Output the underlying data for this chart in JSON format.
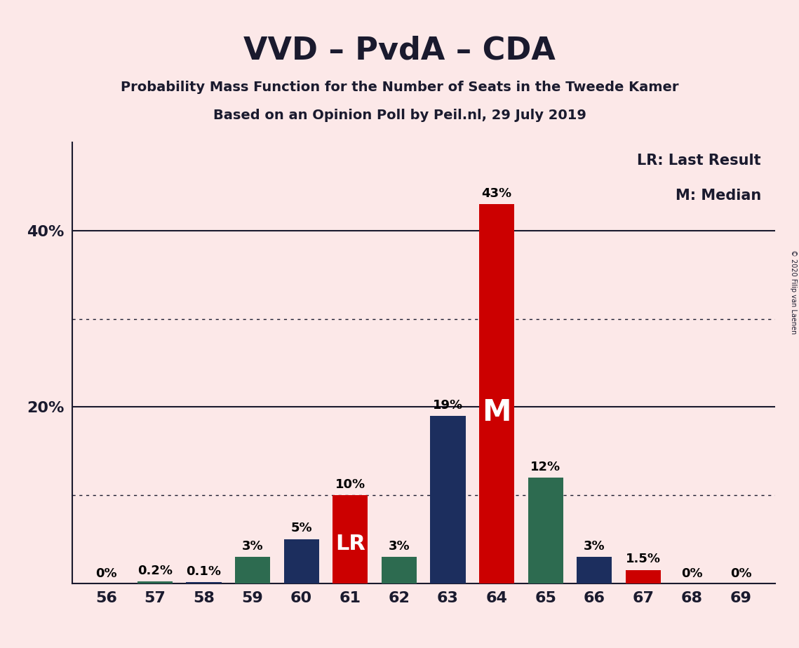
{
  "title": "VVD – PvdA – CDA",
  "subtitle1": "Probability Mass Function for the Number of Seats in the Tweede Kamer",
  "subtitle2": "Based on an Opinion Poll by Peil.nl, 29 July 2019",
  "copyright": "© 2020 Filip van Laenen",
  "legend_lr": "LR: Last Result",
  "legend_m": "M: Median",
  "seats": [
    56,
    57,
    58,
    59,
    60,
    61,
    62,
    63,
    64,
    65,
    66,
    67,
    68,
    69
  ],
  "values": [
    0,
    0.2,
    0.1,
    3,
    5,
    10,
    3,
    19,
    43,
    12,
    3,
    1.5,
    0,
    0
  ],
  "bar_colors": [
    "none",
    "#2d6b50",
    "#1c2e5e",
    "#2d6b50",
    "#1c2e5e",
    "#cc0000",
    "#2d6b50",
    "#1c2e5e",
    "#cc0000",
    "#2d6b50",
    "#1c2e5e",
    "#cc0000",
    "none",
    "none"
  ],
  "labels": [
    "0%",
    "0.2%",
    "0.1%",
    "3%",
    "5%",
    "10%",
    "3%",
    "19%",
    "43%",
    "12%",
    "3%",
    "1.5%",
    "0%",
    "0%"
  ],
  "lr_seat": 61,
  "median_seat": 64,
  "ymax": 50,
  "background_color": "#fce8e8",
  "dotted_lines": [
    10,
    30
  ],
  "solid_lines": [
    20,
    40
  ],
  "bar_width": 0.72,
  "title_fontsize": 32,
  "subtitle_fontsize": 14,
  "tick_fontsize": 16,
  "label_fontsize": 13,
  "legend_fontsize": 15,
  "lr_fontsize": 22,
  "m_fontsize": 30
}
